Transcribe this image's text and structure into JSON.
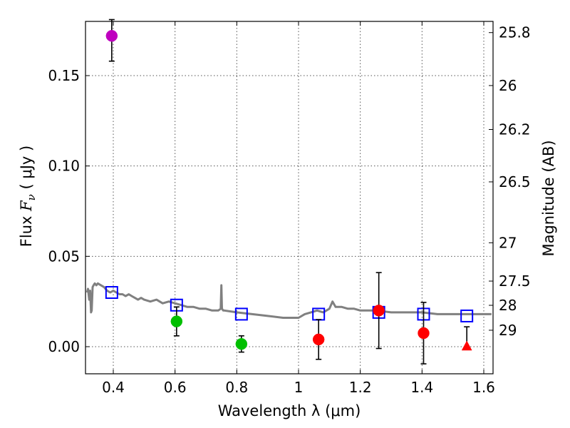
{
  "chart_data": {
    "type": "scatter",
    "xlabel": "Wavelength  λ (μm)",
    "ylabel_left_prefix": "Flux  ",
    "ylabel_left_var": "F",
    "ylabel_left_sub": "ν",
    "ylabel_left_unit": "  ( μJy )",
    "ylabel_right": "Magnitude (AB)",
    "xlim": [
      0.31,
      1.63
    ],
    "ylim": [
      -0.015,
      0.18
    ],
    "x_ticks": [
      0.4,
      0.6,
      0.8,
      1.0,
      1.2,
      1.4,
      1.6
    ],
    "x_tick_labels": [
      "0.4",
      "0.6",
      "0.8",
      "1",
      "1.2",
      "1.4",
      "1.6"
    ],
    "y_ticks": [
      0.0,
      0.05,
      0.1,
      0.15
    ],
    "y_tick_labels": [
      "0.00",
      "0.05",
      "0.10",
      "0.15"
    ],
    "right_ticks": [
      {
        "label": "25.8",
        "flux": 0.1738
      },
      {
        "label": "26",
        "flux": 0.1445
      },
      {
        "label": "26.2",
        "flux": 0.1202
      },
      {
        "label": "26.5",
        "flux": 0.0912
      },
      {
        "label": "27",
        "flux": 0.0575
      },
      {
        "label": "27.5",
        "flux": 0.0363
      },
      {
        "label": "28",
        "flux": 0.0229
      },
      {
        "label": "29",
        "flux": 0.0091
      }
    ],
    "grid": true,
    "colors": {
      "model": "#808080",
      "magenta": "#bf00bf",
      "green": "#00bf00",
      "red": "#ff0000",
      "blue": "#0000ff"
    },
    "model_spectrum": {
      "x": [
        0.315,
        0.318,
        0.322,
        0.325,
        0.328,
        0.33,
        0.333,
        0.336,
        0.34,
        0.345,
        0.35,
        0.36,
        0.37,
        0.38,
        0.39,
        0.4,
        0.41,
        0.42,
        0.43,
        0.44,
        0.45,
        0.46,
        0.47,
        0.48,
        0.49,
        0.5,
        0.52,
        0.54,
        0.56,
        0.58,
        0.6,
        0.62,
        0.64,
        0.66,
        0.68,
        0.7,
        0.72,
        0.74,
        0.748,
        0.75,
        0.752,
        0.756,
        0.76,
        0.8,
        0.85,
        0.9,
        0.95,
        1.0,
        1.02,
        1.04,
        1.06,
        1.08,
        1.1,
        1.11,
        1.12,
        1.14,
        1.16,
        1.18,
        1.2,
        1.25,
        1.3,
        1.35,
        1.4,
        1.45,
        1.5,
        1.55,
        1.6,
        1.625
      ],
      "y": [
        0.03,
        0.032,
        0.026,
        0.031,
        0.019,
        0.02,
        0.033,
        0.034,
        0.035,
        0.034,
        0.035,
        0.034,
        0.033,
        0.031,
        0.03,
        0.031,
        0.03,
        0.029,
        0.029,
        0.028,
        0.029,
        0.028,
        0.027,
        0.026,
        0.027,
        0.026,
        0.025,
        0.026,
        0.024,
        0.025,
        0.024,
        0.023,
        0.022,
        0.022,
        0.021,
        0.021,
        0.02,
        0.02,
        0.021,
        0.034,
        0.021,
        0.02,
        0.02,
        0.019,
        0.018,
        0.017,
        0.016,
        0.016,
        0.018,
        0.019,
        0.02,
        0.019,
        0.021,
        0.025,
        0.022,
        0.022,
        0.021,
        0.021,
        0.02,
        0.02,
        0.019,
        0.019,
        0.019,
        0.018,
        0.018,
        0.018,
        0.018,
        0.018
      ]
    },
    "model_points": {
      "x": [
        0.395,
        0.605,
        0.815,
        1.065,
        1.26,
        1.405,
        1.545
      ],
      "y": [
        0.03,
        0.023,
        0.018,
        0.018,
        0.019,
        0.018,
        0.017
      ]
    },
    "observed": [
      {
        "x": 0.395,
        "y": 0.172,
        "err_low": 0.014,
        "err_high": 0.009,
        "color": "magenta",
        "marker": "circle"
      },
      {
        "x": 0.605,
        "y": 0.014,
        "err_low": 0.008,
        "err_high": 0.008,
        "color": "green",
        "marker": "circle"
      },
      {
        "x": 0.815,
        "y": 0.0015,
        "err_low": 0.0045,
        "err_high": 0.0045,
        "color": "green",
        "marker": "circle"
      },
      {
        "x": 1.065,
        "y": 0.004,
        "err_low": 0.011,
        "err_high": 0.011,
        "color": "red",
        "marker": "circle"
      },
      {
        "x": 1.26,
        "y": 0.02,
        "err_low": 0.021,
        "err_high": 0.021,
        "color": "red",
        "marker": "circle"
      },
      {
        "x": 1.405,
        "y": 0.0075,
        "err_low": 0.017,
        "err_high": 0.017,
        "color": "red",
        "marker": "circle"
      },
      {
        "x": 1.545,
        "y": 0.0,
        "err_low": 0.0,
        "err_high": 0.011,
        "color": "red",
        "marker": "triangle"
      }
    ]
  }
}
